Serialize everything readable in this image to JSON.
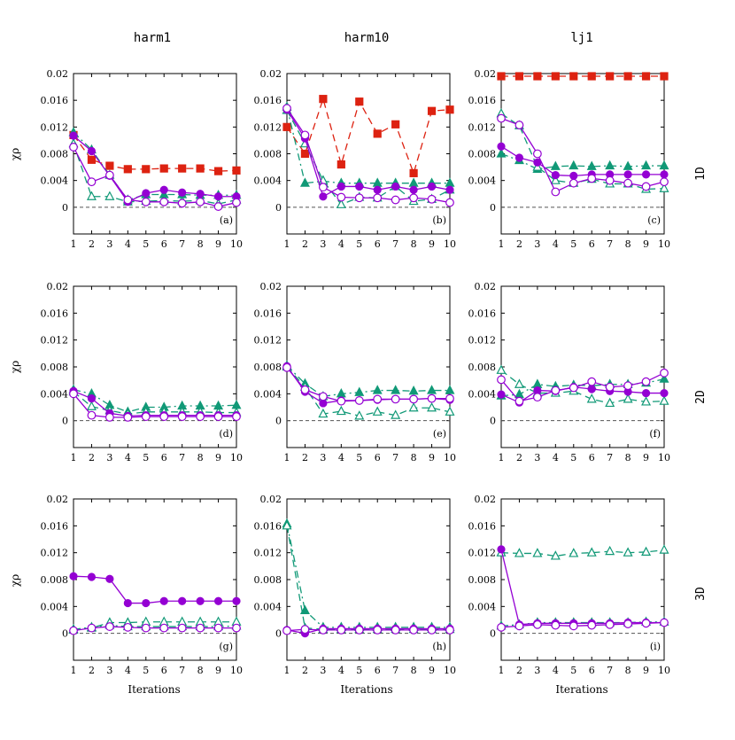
{
  "figure": {
    "col_titles": [
      "harm1",
      "harm10",
      "lj1"
    ],
    "row_labels": [
      "1D",
      "2D",
      "3D"
    ],
    "ylabel": "χρ",
    "xlabel": "Iterations"
  },
  "chart_data": [
    {
      "type": "line",
      "panel_label": "(a)",
      "x": [
        1,
        2,
        3,
        4,
        5,
        6,
        7,
        8,
        9,
        10
      ],
      "ylim": [
        -0.004,
        0.02
      ],
      "yticks": [
        0,
        0.004,
        0.008,
        0.012,
        0.016,
        0.02
      ],
      "ytick_labels": [
        "0",
        "0.004",
        "0.008",
        "0.012",
        "0.016",
        "0.02"
      ],
      "series": [
        {
          "key": "red_square",
          "values": [
            0.0108,
            0.0071,
            0.0062,
            0.0057,
            0.0057,
            0.0058,
            0.0058,
            0.0058,
            0.0054,
            0.0055
          ]
        },
        {
          "key": "green_tri_filled",
          "values": [
            0.0112,
            0.0086,
            0.0048,
            0.0011,
            0.0019,
            0.0019,
            0.0019,
            0.0018,
            0.0018,
            0.0018
          ]
        },
        {
          "key": "green_tri_open",
          "values": [
            0.0095,
            0.0016,
            0.0016,
            0.0008,
            0.0009,
            0.001,
            0.0009,
            0.001,
            0.0005,
            0.0011
          ]
        },
        {
          "key": "purple_circle_filled",
          "values": [
            0.0107,
            0.0084,
            0.0047,
            0.0008,
            0.0021,
            0.0026,
            0.0022,
            0.002,
            0.0016,
            0.0016
          ]
        },
        {
          "key": "purple_circle_open",
          "values": [
            0.009,
            0.0038,
            0.0048,
            0.0011,
            0.0008,
            0.0008,
            0.0006,
            0.0008,
            0.0001,
            0.0007
          ]
        }
      ]
    },
    {
      "type": "line",
      "panel_label": "(b)",
      "x": [
        1,
        2,
        3,
        4,
        5,
        6,
        7,
        8,
        9,
        10
      ],
      "ylim": [
        -0.004,
        0.02
      ],
      "yticks": [
        0,
        0.004,
        0.008,
        0.012,
        0.016,
        0.02
      ],
      "ytick_labels": [
        "0",
        "0.004",
        "0.008",
        "0.012",
        "0.016",
        "0.02"
      ],
      "series": [
        {
          "key": "red_square",
          "values": [
            0.012,
            0.008,
            0.0162,
            0.0064,
            0.0158,
            0.011,
            0.0124,
            0.0051,
            0.0144,
            0.0146
          ]
        },
        {
          "key": "green_tri_filled",
          "values": [
            0.015,
            0.0036,
            0.0039,
            0.0036,
            0.0036,
            0.0036,
            0.0036,
            0.0036,
            0.0036,
            0.0036
          ]
        },
        {
          "key": "green_tri_open",
          "values": [
            0.0145,
            0.0095,
            0.004,
            0.0004,
            0.0015,
            0.0014,
            0.0031,
            0.0009,
            0.0012,
            0.0026
          ]
        },
        {
          "key": "purple_circle_filled",
          "values": [
            0.0146,
            0.0103,
            0.0016,
            0.0031,
            0.0031,
            0.0026,
            0.0031,
            0.0026,
            0.0031,
            0.0026
          ]
        },
        {
          "key": "purple_circle_open",
          "values": [
            0.0148,
            0.0108,
            0.003,
            0.0015,
            0.0014,
            0.0014,
            0.0011,
            0.0014,
            0.0012,
            0.0007
          ]
        }
      ]
    },
    {
      "type": "line",
      "panel_label": "(c)",
      "x": [
        1,
        2,
        3,
        4,
        5,
        6,
        7,
        8,
        9,
        10
      ],
      "ylim": [
        -0.004,
        0.02
      ],
      "yticks": [
        0,
        0.004,
        0.008,
        0.012,
        0.016,
        0.02
      ],
      "ytick_labels": [
        "0",
        "0.004",
        "0.008",
        "0.012",
        "0.016",
        "0.02"
      ],
      "series": [
        {
          "key": "red_square",
          "values": [
            0.0196,
            0.0196,
            0.0196,
            0.0196,
            0.0196,
            0.0196,
            0.0196,
            0.0196,
            0.0196,
            0.0196
          ]
        },
        {
          "key": "green_tri_filled",
          "values": [
            0.008,
            0.007,
            0.0057,
            0.0061,
            0.0062,
            0.0061,
            0.0062,
            0.0061,
            0.0062,
            0.0062
          ]
        },
        {
          "key": "green_tri_open",
          "values": [
            0.014,
            0.0122,
            0.006,
            0.004,
            0.0036,
            0.0042,
            0.0035,
            0.0035,
            0.0027,
            0.0028
          ]
        },
        {
          "key": "purple_circle_filled",
          "values": [
            0.0091,
            0.0074,
            0.0067,
            0.0048,
            0.0047,
            0.0049,
            0.0049,
            0.0049,
            0.0049,
            0.0049
          ]
        },
        {
          "key": "purple_circle_open",
          "values": [
            0.0133,
            0.0123,
            0.008,
            0.0023,
            0.0036,
            0.0043,
            0.004,
            0.0036,
            0.0031,
            0.0038
          ]
        }
      ]
    },
    {
      "type": "line",
      "panel_label": "(d)",
      "x": [
        1,
        2,
        3,
        4,
        5,
        6,
        7,
        8,
        9,
        10
      ],
      "ylim": [
        -0.004,
        0.02
      ],
      "yticks": [
        0,
        0.004,
        0.008,
        0.012,
        0.016,
        0.02
      ],
      "ytick_labels": [
        "0",
        "0.004",
        "0.008",
        "0.012",
        "0.016",
        "0.02"
      ],
      "series": [
        {
          "key": "green_tri_filled",
          "values": [
            0.0046,
            0.004,
            0.0023,
            0.0013,
            0.002,
            0.002,
            0.0022,
            0.0022,
            0.0022,
            0.0023
          ]
        },
        {
          "key": "green_tri_open",
          "values": [
            0.0043,
            0.0021,
            0.0015,
            0.001,
            0.0013,
            0.0013,
            0.0013,
            0.0013,
            0.0012,
            0.0012
          ]
        },
        {
          "key": "purple_circle_filled",
          "values": [
            0.0044,
            0.0033,
            0.0011,
            0.0007,
            0.0008,
            0.0008,
            0.0008,
            0.0008,
            0.0008,
            0.0008
          ]
        },
        {
          "key": "purple_circle_open",
          "values": [
            0.004,
            0.0008,
            0.0005,
            0.0005,
            0.0006,
            0.0006,
            0.0006,
            0.0006,
            0.0006,
            0.0006
          ]
        }
      ]
    },
    {
      "type": "line",
      "panel_label": "(e)",
      "x": [
        1,
        2,
        3,
        4,
        5,
        6,
        7,
        8,
        9,
        10
      ],
      "ylim": [
        -0.004,
        0.02
      ],
      "yticks": [
        0,
        0.004,
        0.008,
        0.012,
        0.016,
        0.02
      ],
      "ytick_labels": [
        "0",
        "0.004",
        "0.008",
        "0.012",
        "0.016",
        "0.02"
      ],
      "series": [
        {
          "key": "green_tri_filled",
          "values": [
            0.0082,
            0.0055,
            0.0036,
            0.004,
            0.0042,
            0.0045,
            0.0045,
            0.0044,
            0.0045,
            0.0045
          ]
        },
        {
          "key": "green_tri_open",
          "values": [
            0.008,
            0.005,
            0.001,
            0.0014,
            0.0007,
            0.0013,
            0.0008,
            0.0019,
            0.0019,
            0.0013
          ]
        },
        {
          "key": "purple_circle_filled",
          "values": [
            0.0081,
            0.0043,
            0.0026,
            0.003,
            0.003,
            0.0031,
            0.0032,
            0.0032,
            0.0033,
            0.0031
          ]
        },
        {
          "key": "purple_circle_open",
          "values": [
            0.0079,
            0.0046,
            0.0036,
            0.0029,
            0.003,
            0.0032,
            0.0032,
            0.0032,
            0.0033,
            0.0033
          ]
        }
      ]
    },
    {
      "type": "line",
      "panel_label": "(f)",
      "x": [
        1,
        2,
        3,
        4,
        5,
        6,
        7,
        8,
        9,
        10
      ],
      "ylim": [
        -0.004,
        0.02
      ],
      "yticks": [
        0,
        0.004,
        0.008,
        0.012,
        0.016,
        0.02
      ],
      "ytick_labels": [
        "0",
        "0.004",
        "0.008",
        "0.012",
        "0.016",
        "0.02"
      ],
      "series": [
        {
          "key": "green_tri_filled",
          "values": [
            0.0037,
            0.0039,
            0.0054,
            0.0051,
            0.0053,
            0.0052,
            0.0054,
            0.0054,
            0.0056,
            0.0062
          ]
        },
        {
          "key": "green_tri_open",
          "values": [
            0.0075,
            0.0054,
            0.0041,
            0.0041,
            0.0044,
            0.0032,
            0.0026,
            0.0032,
            0.0028,
            0.0029
          ]
        },
        {
          "key": "purple_circle_filled",
          "values": [
            0.0039,
            0.0027,
            0.0045,
            0.0044,
            0.005,
            0.0047,
            0.0044,
            0.0043,
            0.0041,
            0.0041
          ]
        },
        {
          "key": "purple_circle_open",
          "values": [
            0.0061,
            0.0029,
            0.0035,
            0.0045,
            0.0049,
            0.0058,
            0.005,
            0.0052,
            0.0058,
            0.0071
          ]
        }
      ]
    },
    {
      "type": "line",
      "panel_label": "(g)",
      "x": [
        1,
        2,
        3,
        4,
        5,
        6,
        7,
        8,
        9,
        10
      ],
      "ylim": [
        -0.004,
        0.02
      ],
      "yticks": [
        0,
        0.004,
        0.008,
        0.012,
        0.016,
        0.02
      ],
      "ytick_labels": [
        "0",
        "0.004",
        "0.008",
        "0.012",
        "0.016",
        "0.02"
      ],
      "series": [
        {
          "key": "green_tri_filled",
          "values": [
            0.0006,
            0.0009,
            0.0012,
            0.001,
            0.001,
            0.001,
            0.001,
            0.001,
            0.001,
            0.0011
          ]
        },
        {
          "key": "green_tri_open",
          "values": [
            0.0005,
            0.0008,
            0.0016,
            0.0016,
            0.0017,
            0.0017,
            0.0017,
            0.0017,
            0.0017,
            0.0017
          ]
        },
        {
          "key": "purple_circle_filled",
          "values": [
            0.0085,
            0.0084,
            0.0081,
            0.0045,
            0.0045,
            0.0048,
            0.0048,
            0.0048,
            0.0048,
            0.0048
          ]
        },
        {
          "key": "purple_circle_open",
          "values": [
            0.0004,
            0.0008,
            0.001,
            0.0009,
            0.0008,
            0.0008,
            0.0008,
            0.0008,
            0.0008,
            0.0008
          ]
        }
      ]
    },
    {
      "type": "line",
      "panel_label": "(h)",
      "x": [
        1,
        2,
        3,
        4,
        5,
        6,
        7,
        8,
        9,
        10
      ],
      "ylim": [
        -0.004,
        0.02
      ],
      "yticks": [
        0,
        0.004,
        0.008,
        0.012,
        0.016,
        0.02
      ],
      "ytick_labels": [
        "0",
        "0.004",
        "0.008",
        "0.012",
        "0.016",
        "0.02"
      ],
      "series": [
        {
          "key": "green_tri_filled",
          "values": [
            0.0163,
            0.0034,
            0.0009,
            0.0009,
            0.0009,
            0.0009,
            0.0009,
            0.0009,
            0.0009,
            0.0009
          ]
        },
        {
          "key": "green_tri_open",
          "values": [
            0.016,
            0.0008,
            0.0006,
            0.0006,
            0.0006,
            0.0006,
            0.0006,
            0.0006,
            0.0006,
            0.0006
          ]
        },
        {
          "key": "purple_circle_filled",
          "values": [
            0.0005,
            0.0,
            0.0007,
            0.0007,
            0.0007,
            0.0007,
            0.0007,
            0.0007,
            0.0007,
            0.0007
          ]
        },
        {
          "key": "purple_circle_open",
          "values": [
            0.0004,
            0.0006,
            0.0005,
            0.0005,
            0.0005,
            0.0005,
            0.0005,
            0.0005,
            0.0005,
            0.0005
          ]
        }
      ]
    },
    {
      "type": "line",
      "panel_label": "(i)",
      "x": [
        1,
        2,
        3,
        4,
        5,
        6,
        7,
        8,
        9,
        10
      ],
      "ylim": [
        -0.004,
        0.02
      ],
      "yticks": [
        0,
        0.004,
        0.008,
        0.012,
        0.016,
        0.02
      ],
      "ytick_labels": [
        "0",
        "0.004",
        "0.008",
        "0.012",
        "0.016",
        "0.02"
      ],
      "series": [
        {
          "key": "green_tri_filled",
          "values": [
            0.0011,
            0.0013,
            0.0016,
            0.0016,
            0.0016,
            0.0016,
            0.0016,
            0.0016,
            0.0017,
            0.0017
          ]
        },
        {
          "key": "green_tri_open",
          "values": [
            0.012,
            0.0119,
            0.0119,
            0.0115,
            0.0119,
            0.012,
            0.0122,
            0.012,
            0.0121,
            0.0124
          ]
        },
        {
          "key": "purple_circle_filled",
          "values": [
            0.0125,
            0.0013,
            0.0015,
            0.0015,
            0.0015,
            0.0015,
            0.0015,
            0.0016,
            0.0016,
            0.0016
          ]
        },
        {
          "key": "purple_circle_open",
          "values": [
            0.0009,
            0.0011,
            0.0013,
            0.0012,
            0.0011,
            0.0012,
            0.0013,
            0.0014,
            0.0015,
            0.0016
          ]
        }
      ]
    }
  ],
  "series_styles": {
    "red_square": {
      "color": "#dd2211",
      "marker": "square",
      "filled": true,
      "dash": "dashed"
    },
    "green_tri_filled": {
      "color": "#119977",
      "marker": "triangle",
      "filled": true,
      "dash": "dashdot"
    },
    "green_tri_open": {
      "color": "#119977",
      "marker": "triangle",
      "filled": false,
      "dash": "dashed"
    },
    "purple_circle_filled": {
      "color": "#9400d3",
      "marker": "circle",
      "filled": true,
      "dash": "solid"
    },
    "purple_circle_open": {
      "color": "#9400d3",
      "marker": "circle",
      "filled": false,
      "dash": "solid"
    }
  }
}
